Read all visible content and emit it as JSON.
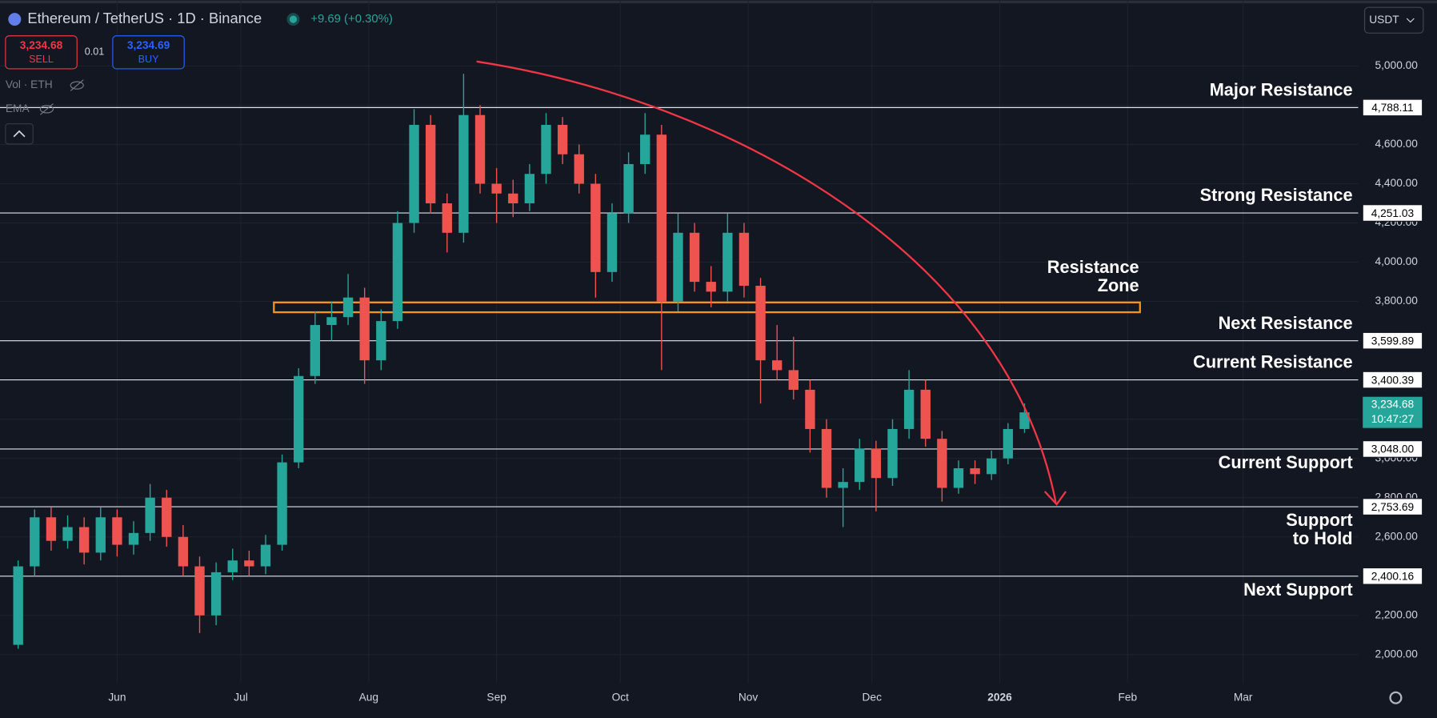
{
  "chart_data": {
    "type": "candlestick",
    "symbol": "Ethereum / TetherUS · 1D · Binance",
    "change": "+9.69 (+0.30%)",
    "sell_price": "3,234.68",
    "sell": "SELL",
    "spread": "0.01",
    "buy_price": "3,234.69",
    "buy": "BUY",
    "indicators": [
      "Vol · ETH",
      "EMA"
    ],
    "currency": "USDT",
    "up_color": "#26a69a",
    "down_color": "#ef5350",
    "grid": true,
    "xlim": [
      -28.4,
      300.9
    ],
    "xticks": [
      {
        "value": 0,
        "label": "Jun"
      },
      {
        "value": 30,
        "label": "Jul"
      },
      {
        "value": 61,
        "label": "Aug"
      },
      {
        "value": 92,
        "label": "Sep"
      },
      {
        "value": 122,
        "label": "Oct"
      },
      {
        "value": 153,
        "label": "Nov"
      },
      {
        "value": 183,
        "label": "Dec"
      },
      {
        "value": 214,
        "label": "2026"
      },
      {
        "value": 245,
        "label": "Feb"
      },
      {
        "value": 273,
        "label": "Mar"
      }
    ],
    "ylim": [
      1855,
      5336
    ],
    "yticks": [
      {
        "value": 2000,
        "label": "2,000.00"
      },
      {
        "value": 2200,
        "label": "2,200.00"
      },
      {
        "value": 2400,
        "label": "2,400.00"
      },
      {
        "value": 2600,
        "label": "2,600.00"
      },
      {
        "value": 2800,
        "label": "2,800.00"
      },
      {
        "value": 3000,
        "label": "3,000.00"
      },
      {
        "value": 3200,
        "label": "3,200.00"
      },
      {
        "value": 3400,
        "label": "3,400.00"
      },
      {
        "value": 3600,
        "label": "3,600.00"
      },
      {
        "value": 3800,
        "label": "3,800.00"
      },
      {
        "value": 4000,
        "label": "4,000.00"
      },
      {
        "value": 4200,
        "label": "4,200.00"
      },
      {
        "value": 4400,
        "label": "4,400.00"
      },
      {
        "value": 4600,
        "label": "4,600.00"
      },
      {
        "value": 4800,
        "label": "4,800.00"
      },
      {
        "value": 5000,
        "label": "5,000.00"
      }
    ],
    "x": [
      -24,
      -20,
      -16,
      -12,
      -8,
      -4,
      0,
      4,
      8,
      12,
      16,
      20,
      24,
      28,
      32,
      36,
      40,
      44,
      48,
      52,
      56,
      60,
      64,
      68,
      72,
      76,
      80,
      84,
      88,
      92,
      96,
      100,
      104,
      108,
      112,
      116,
      120,
      124,
      128,
      132,
      136,
      140,
      144,
      148,
      152,
      156,
      160,
      164,
      168,
      172,
      176,
      180,
      184,
      188,
      192,
      196,
      200,
      204,
      208,
      212,
      216,
      220
    ],
    "candles": [
      [
        2050,
        2480,
        2030,
        2450
      ],
      [
        2450,
        2740,
        2400,
        2700
      ],
      [
        2700,
        2750,
        2530,
        2580
      ],
      [
        2580,
        2710,
        2540,
        2650
      ],
      [
        2650,
        2700,
        2460,
        2520
      ],
      [
        2520,
        2750,
        2480,
        2700
      ],
      [
        2700,
        2740,
        2500,
        2560
      ],
      [
        2560,
        2680,
        2510,
        2620
      ],
      [
        2620,
        2870,
        2580,
        2800
      ],
      [
        2800,
        2840,
        2550,
        2600
      ],
      [
        2600,
        2660,
        2400,
        2450
      ],
      [
        2450,
        2500,
        2110,
        2200
      ],
      [
        2200,
        2470,
        2150,
        2420
      ],
      [
        2420,
        2540,
        2380,
        2480
      ],
      [
        2480,
        2530,
        2400,
        2450
      ],
      [
        2450,
        2610,
        2410,
        2560
      ],
      [
        2560,
        3020,
        2530,
        2980
      ],
      [
        2980,
        3460,
        2950,
        3420
      ],
      [
        3420,
        3750,
        3380,
        3680
      ],
      [
        3680,
        3800,
        3600,
        3720
      ],
      [
        3720,
        3940,
        3680,
        3820
      ],
      [
        3820,
        3870,
        3380,
        3500
      ],
      [
        3500,
        3760,
        3450,
        3700
      ],
      [
        3700,
        4260,
        3660,
        4200
      ],
      [
        4200,
        4780,
        4150,
        4700
      ],
      [
        4700,
        4750,
        4250,
        4300
      ],
      [
        4300,
        4350,
        4050,
        4150
      ],
      [
        4150,
        4960,
        4100,
        4750
      ],
      [
        4750,
        4800,
        4350,
        4400
      ],
      [
        4400,
        4480,
        4200,
        4350
      ],
      [
        4350,
        4420,
        4230,
        4300
      ],
      [
        4300,
        4500,
        4260,
        4450
      ],
      [
        4450,
        4760,
        4400,
        4700
      ],
      [
        4700,
        4740,
        4500,
        4550
      ],
      [
        4550,
        4600,
        4350,
        4400
      ],
      [
        4400,
        4450,
        3820,
        3950
      ],
      [
        3950,
        4300,
        3900,
        4250
      ],
      [
        4250,
        4560,
        4200,
        4500
      ],
      [
        4500,
        4760,
        4450,
        4650
      ],
      [
        4650,
        4700,
        3450,
        3800
      ],
      [
        3800,
        4250,
        3750,
        4150
      ],
      [
        4150,
        4200,
        3850,
        3900
      ],
      [
        3900,
        3980,
        3770,
        3850
      ],
      [
        3850,
        4250,
        3800,
        4150
      ],
      [
        4150,
        4200,
        3820,
        3880
      ],
      [
        3880,
        3920,
        3280,
        3500
      ],
      [
        3500,
        3680,
        3400,
        3450
      ],
      [
        3450,
        3620,
        3300,
        3350
      ],
      [
        3350,
        3400,
        3030,
        3150
      ],
      [
        3150,
        3200,
        2800,
        2850
      ],
      [
        2850,
        2950,
        2650,
        2880
      ],
      [
        2880,
        3100,
        2840,
        3050
      ],
      [
        3050,
        3090,
        2730,
        2900
      ],
      [
        2900,
        3200,
        2860,
        3150
      ],
      [
        3150,
        3450,
        3100,
        3350
      ],
      [
        3350,
        3400,
        3060,
        3100
      ],
      [
        3100,
        3140,
        2780,
        2850
      ],
      [
        2850,
        2990,
        2820,
        2950
      ],
      [
        2950,
        2990,
        2870,
        2920
      ],
      [
        2920,
        3040,
        2890,
        3000
      ],
      [
        3000,
        3180,
        2970,
        3150
      ],
      [
        3150,
        3280,
        3130,
        3234.68
      ]
    ],
    "last_price": {
      "value": 3234.68,
      "label": "3,234.68",
      "countdown": "10:47:27"
    },
    "levels": [
      {
        "name": "Major Resistance",
        "value": 4788.11,
        "label": "4,788.11"
      },
      {
        "name": "Strong Resistance",
        "value": 4251.03,
        "label": "4,251.03"
      },
      {
        "name": "Next Resistance",
        "value": 3599.89,
        "label": "3,599.89"
      },
      {
        "name": "Current Resistance",
        "value": 3400.39,
        "label": "3,400.39"
      },
      {
        "name": "Current Support",
        "value": 3048.0,
        "label": "3,048.00"
      },
      {
        "name": [
          "Support",
          "to Hold"
        ],
        "value": 2753.69,
        "label": "2,753.69"
      },
      {
        "name": "Next Support",
        "value": 2400.16,
        "label": "2,400.16"
      }
    ],
    "zone": {
      "name": [
        "Resistance",
        "Zone"
      ],
      "range": [
        3745,
        3795
      ],
      "x_range": [
        38,
        248
      ],
      "color": "#f7931a"
    }
  }
}
